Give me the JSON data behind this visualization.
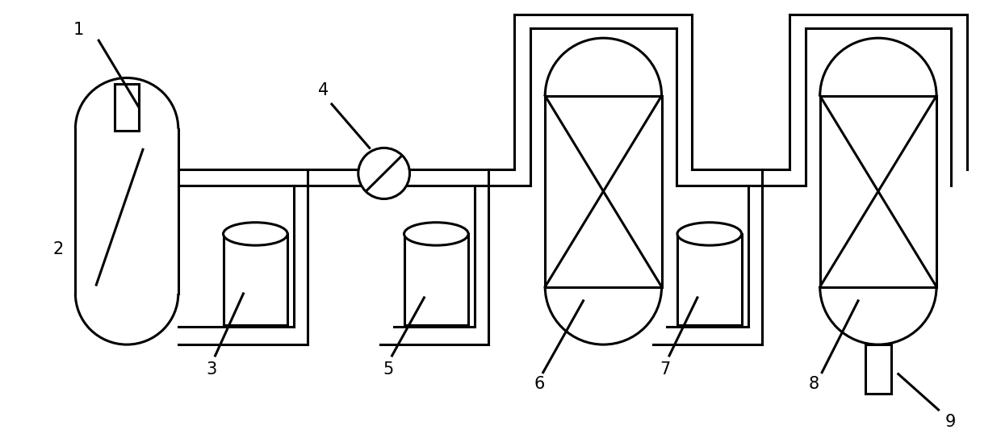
{
  "line_color": "#000000",
  "line_width": 2.2,
  "bg_color": "#ffffff",
  "fig_width": 12.4,
  "fig_height": 5.38
}
